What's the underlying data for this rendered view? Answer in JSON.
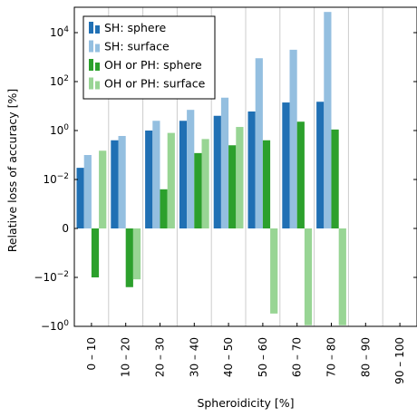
{
  "chart_data": {
    "type": "bar",
    "title": "",
    "xlabel": "Spheroidicity [%]",
    "ylabel": "Relative loss of accuracy [%]",
    "categories": [
      "0 – 10",
      "10 – 20",
      "20 – 30",
      "30 – 40",
      "40 – 50",
      "50 – 60",
      "60 – 70",
      "70 – 80",
      "80 – 90",
      "90 – 100"
    ],
    "y_scale": "symlog",
    "ylim": [
      -1,
      100000
    ],
    "y_ticks": [
      {
        "value": 10000,
        "label": "10^4"
      },
      {
        "value": 100,
        "label": "10^2"
      },
      {
        "value": 1,
        "label": "10^0"
      },
      {
        "value": 0.01,
        "label": "10^-2"
      },
      {
        "value": 0,
        "label": "0"
      },
      {
        "value": -0.01,
        "label": "−10^-2"
      },
      {
        "value": -1,
        "label": "−10^0"
      }
    ],
    "grid": "vertical",
    "legend_position": "top-left",
    "series": [
      {
        "name": "SH: sphere",
        "color": "#2070b4",
        "values": [
          0.03,
          0.4,
          1.0,
          2.5,
          4.0,
          6.0,
          14,
          15,
          null,
          null
        ]
      },
      {
        "name": "SH: surface",
        "color": "#94bfe0",
        "values": [
          0.1,
          0.6,
          2.5,
          7.0,
          22,
          900,
          2000,
          70000,
          null,
          null
        ]
      },
      {
        "name": "OH or PH: sphere",
        "color": "#2ca02c",
        "values": [
          -0.01,
          -0.025,
          0.008,
          0.12,
          0.25,
          0.4,
          2.3,
          1.1,
          null,
          null
        ]
      },
      {
        "name": "OH or PH: surface",
        "color": "#98d594",
        "values": [
          0.15,
          -0.012,
          0.8,
          0.45,
          1.4,
          -0.3,
          -0.9,
          -0.9,
          null,
          null
        ]
      }
    ]
  }
}
